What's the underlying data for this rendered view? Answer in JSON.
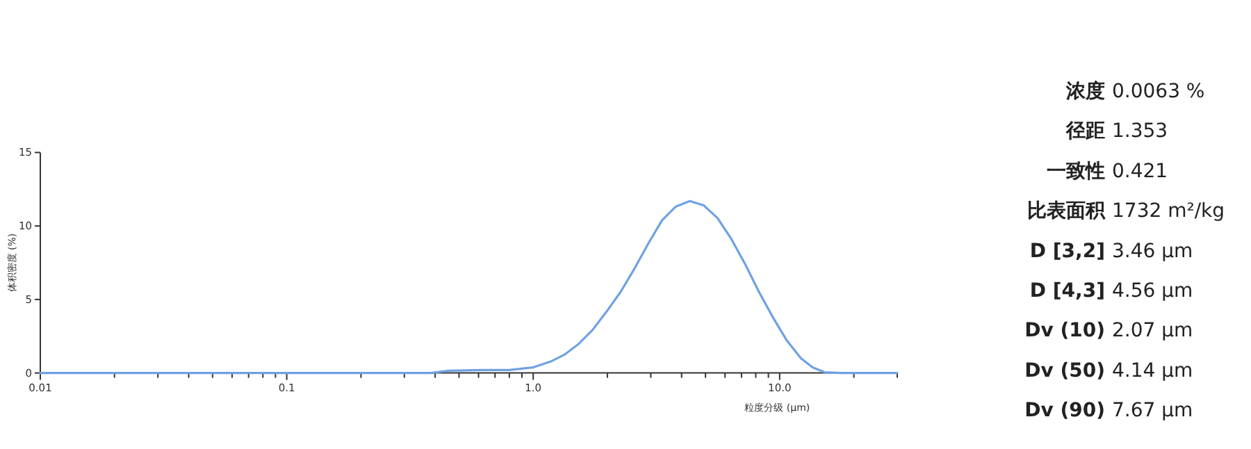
{
  "chart_data": {
    "type": "line",
    "xlabel": "粒度分级 (μm)",
    "ylabel": "体积密度 (%)",
    "log": "x",
    "color": "#6fa1e4",
    "marker": "none",
    "line_style": "solid",
    "grid": false,
    "legend": false,
    "x": [
      0.01,
      0.1,
      0.3,
      0.383,
      0.455,
      0.616,
      0.799,
      1.0,
      1.18,
      1.34,
      1.53,
      1.74,
      1.98,
      2.26,
      2.57,
      2.93,
      3.33,
      3.79,
      4.32,
      4.92,
      5.6,
      6.37,
      7.25,
      8.25,
      9.4,
      10.7,
      12.2,
      13.6,
      15.2,
      17.9,
      30
    ],
    "values": [
      0,
      0,
      0,
      0,
      0.15,
      0.2,
      0.2,
      0.38,
      0.78,
      1.25,
      1.98,
      2.92,
      4.15,
      5.5,
      7.07,
      8.8,
      10.38,
      11.32,
      11.7,
      11.4,
      10.53,
      9.11,
      7.39,
      5.5,
      3.77,
      2.2,
      1.0,
      0.38,
      0.05,
      0,
      0
    ],
    "xlim": [
      0.01,
      30
    ],
    "ylim": [
      0,
      15
    ],
    "xticks": [
      {
        "value": 0.01,
        "label": "0.01"
      },
      {
        "value": 0.02,
        "label": null
      },
      {
        "value": 0.03,
        "label": null
      },
      {
        "value": 0.04,
        "label": null
      },
      {
        "value": 0.05,
        "label": null
      },
      {
        "value": 0.06,
        "label": null
      },
      {
        "value": 0.07,
        "label": null
      },
      {
        "value": 0.08,
        "label": null
      },
      {
        "value": 0.09,
        "label": null
      },
      {
        "value": 0.1,
        "label": "0.1"
      },
      {
        "value": 0.2,
        "label": null
      },
      {
        "value": 0.3,
        "label": null
      },
      {
        "value": 0.4,
        "label": null
      },
      {
        "value": 0.5,
        "label": null
      },
      {
        "value": 0.6,
        "label": null
      },
      {
        "value": 0.7,
        "label": null
      },
      {
        "value": 0.8,
        "label": null
      },
      {
        "value": 0.9,
        "label": null
      },
      {
        "value": 1,
        "label": "1.0"
      },
      {
        "value": 2,
        "label": null
      },
      {
        "value": 3,
        "label": null
      },
      {
        "value": 4,
        "label": null
      },
      {
        "value": 5,
        "label": null
      },
      {
        "value": 6,
        "label": null
      },
      {
        "value": 7,
        "label": null
      },
      {
        "value": 8,
        "label": null
      },
      {
        "value": 9,
        "label": null
      },
      {
        "value": 10,
        "label": "10.0"
      },
      {
        "value": 20,
        "label": null
      },
      {
        "value": 30,
        "label": null
      }
    ],
    "yticks": [
      0,
      5,
      10,
      15
    ],
    "annotations": [
      "**浓度** 0.0063 %",
      "**径距** 1.353",
      "**一致性** 0.421",
      "**比表面积** 1732 m²/kg",
      "**D [3,2]** 3.46 μm",
      "**D [4,3]** 4.56 μm",
      "**Dv (10)** 2.07 μm",
      "**Dv (50)** 4.14 μm",
      "**Dv (90)** 7.67 μm"
    ]
  }
}
